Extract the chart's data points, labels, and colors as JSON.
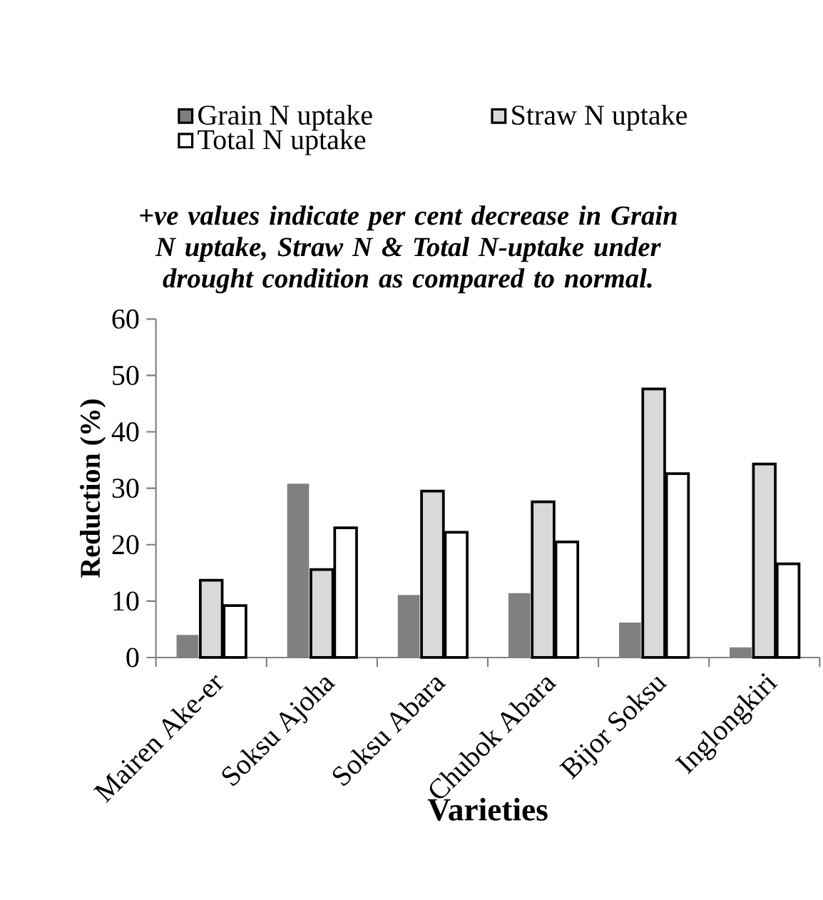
{
  "chart_data": {
    "type": "bar",
    "title": "+ve values indicate per cent decrease in Grain N uptake, Straw N & Total N-uptake under drought condition as  compared to normal.",
    "xlabel": "Varieties",
    "ylabel": "Reduction  (%)",
    "categories": [
      "Mairen Ake-er",
      "Soksu Ajoha",
      "Soksu Abara",
      "Chubok Abara",
      "Bijor Soksu",
      "Inglongkiri"
    ],
    "series": [
      {
        "name": "Grain N uptake",
        "color": "#808080",
        "values": [
          4.0,
          30.8,
          11.1,
          11.4,
          6.2,
          1.8
        ]
      },
      {
        "name": "Straw N uptake",
        "color": "#d9d9d9",
        "values": [
          13.7,
          15.6,
          29.5,
          27.6,
          47.6,
          34.3
        ]
      },
      {
        "name": "Total N uptake",
        "color": "#ffffff",
        "values": [
          9.2,
          23.0,
          22.2,
          20.5,
          32.6,
          16.6
        ]
      }
    ],
    "ylim": [
      0,
      60
    ],
    "yticks": [
      0,
      10,
      20,
      30,
      40,
      50,
      60
    ],
    "grid": false,
    "legend": "top"
  }
}
